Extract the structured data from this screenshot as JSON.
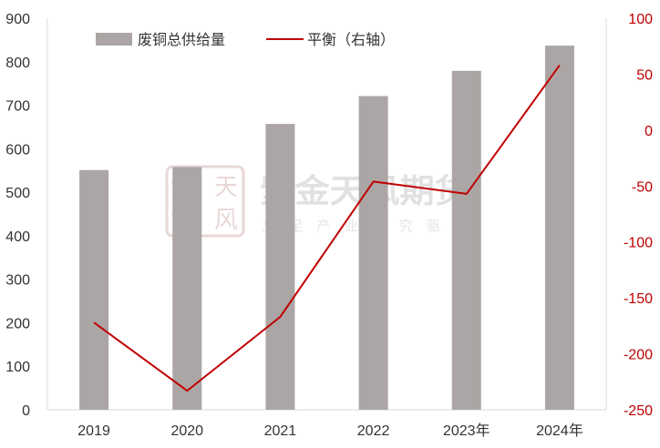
{
  "chart_data": {
    "type": "bar+line",
    "categories": [
      "2019",
      "2020",
      "2021",
      "2022",
      "2023年",
      "2024年"
    ],
    "series": [
      {
        "name": "废铜总供给量",
        "type": "bar",
        "axis": "left",
        "color": "#aba6a5",
        "values": [
          551,
          558,
          657,
          721,
          779,
          837
        ]
      },
      {
        "name": "平衡（右轴）",
        "type": "line",
        "axis": "right",
        "color": "#c00000",
        "values": [
          -172,
          -233,
          -167,
          -46,
          -57,
          58
        ]
      }
    ],
    "y_left": {
      "ylim": [
        0,
        900
      ],
      "ticks": [
        0,
        100,
        200,
        300,
        400,
        500,
        600,
        700,
        800,
        900
      ]
    },
    "y_right": {
      "ylim": [
        -250,
        100
      ],
      "ticks": [
        -250,
        -200,
        -150,
        -100,
        -50,
        0,
        50,
        100
      ]
    },
    "legend": {
      "placement": "top-left"
    },
    "grid": false
  },
  "watermark": {
    "name": "紫金天风期货",
    "slogan": "立足产业研究驱动",
    "logo_chars": [
      "紫",
      "天",
      "金",
      "风"
    ],
    "color": "#d9b8b8"
  }
}
